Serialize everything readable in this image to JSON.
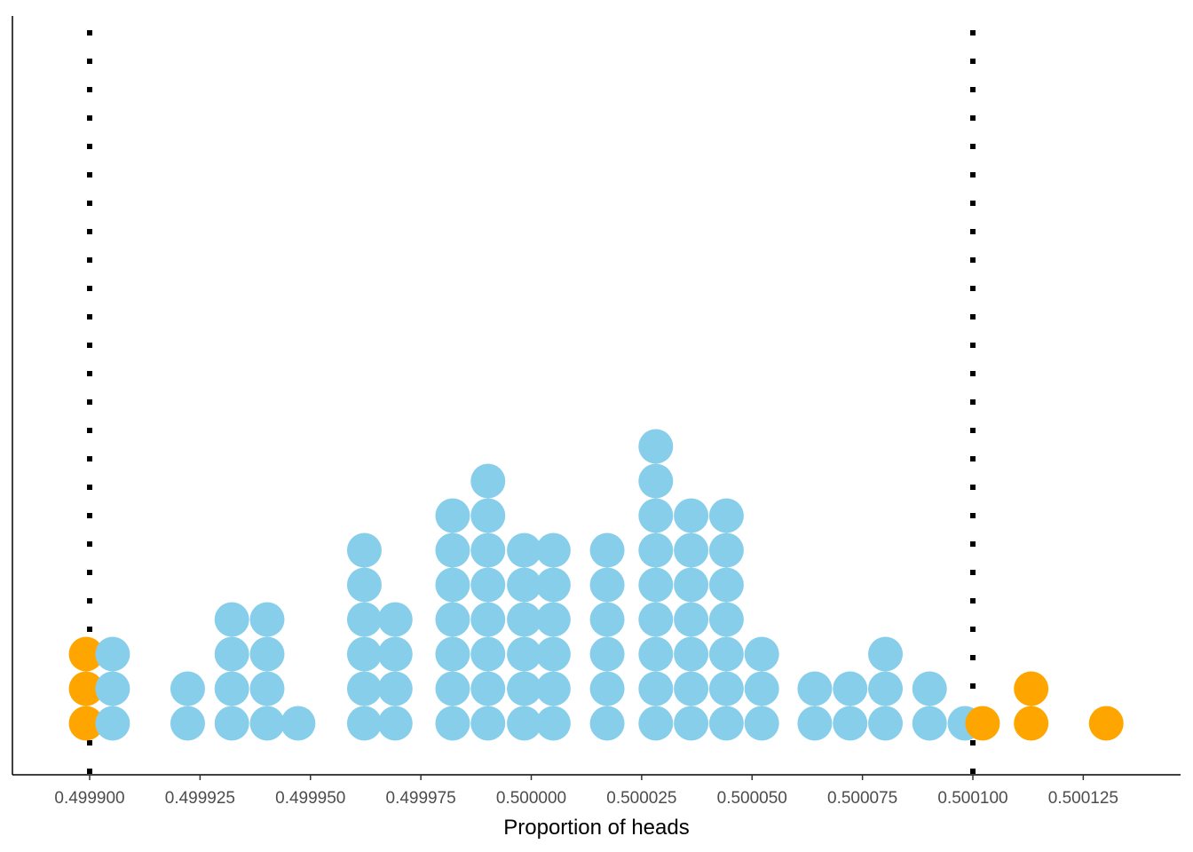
{
  "chart_data": {
    "type": "dotplot",
    "title": "",
    "xlabel": "Proportion of heads",
    "ylabel": "",
    "xlim": [
      0.499888,
      0.500145
    ],
    "xticks": [
      {
        "value": 0.4999,
        "label": "0.499900"
      },
      {
        "value": 0.499925,
        "label": "0.499925"
      },
      {
        "value": 0.49995,
        "label": "0.499950"
      },
      {
        "value": 0.499975,
        "label": "0.499975"
      },
      {
        "value": 0.5,
        "label": "0.500000"
      },
      {
        "value": 0.500025,
        "label": "0.500025"
      },
      {
        "value": 0.50005,
        "label": "0.500050"
      },
      {
        "value": 0.500075,
        "label": "0.500075"
      },
      {
        "value": 0.5001,
        "label": "0.500100"
      },
      {
        "value": 0.500125,
        "label": "0.500125"
      }
    ],
    "reference_lines": [
      0.4999,
      0.5001
    ],
    "colors": {
      "inside": "#87CEEB",
      "outside": "#FFA500",
      "reference_line": "#000000"
    },
    "stacks": [
      {
        "x": 0.4998992,
        "count": 3,
        "group": "outside"
      },
      {
        "x": 0.4999052,
        "count": 3,
        "group": "inside"
      },
      {
        "x": 0.4999222,
        "count": 2,
        "group": "inside"
      },
      {
        "x": 0.4999322,
        "count": 4,
        "group": "inside"
      },
      {
        "x": 0.4999402,
        "count": 4,
        "group": "inside"
      },
      {
        "x": 0.4999472,
        "count": 1,
        "group": "inside"
      },
      {
        "x": 0.4999622,
        "count": 6,
        "group": "inside"
      },
      {
        "x": 0.4999692,
        "count": 4,
        "group": "inside"
      },
      {
        "x": 0.4999822,
        "count": 7,
        "group": "inside"
      },
      {
        "x": 0.4999902,
        "count": 8,
        "group": "inside"
      },
      {
        "x": 0.4999984,
        "count": 6,
        "group": "inside"
      },
      {
        "x": 0.500005,
        "count": 6,
        "group": "inside"
      },
      {
        "x": 0.5000172,
        "count": 6,
        "group": "inside"
      },
      {
        "x": 0.5000282,
        "count": 9,
        "group": "inside"
      },
      {
        "x": 0.5000362,
        "count": 7,
        "group": "inside"
      },
      {
        "x": 0.5000442,
        "count": 7,
        "group": "inside"
      },
      {
        "x": 0.5000522,
        "count": 3,
        "group": "inside"
      },
      {
        "x": 0.5000642,
        "count": 2,
        "group": "inside"
      },
      {
        "x": 0.5000722,
        "count": 2,
        "group": "inside"
      },
      {
        "x": 0.5000802,
        "count": 3,
        "group": "inside"
      },
      {
        "x": 0.5000902,
        "count": 2,
        "group": "inside"
      },
      {
        "x": 0.5000982,
        "count": 1,
        "group": "inside"
      },
      {
        "x": 0.5001022,
        "count": 1,
        "group": "outside"
      },
      {
        "x": 0.5001132,
        "count": 2,
        "group": "outside"
      },
      {
        "x": 0.5001302,
        "count": 1,
        "group": "outside"
      }
    ]
  }
}
